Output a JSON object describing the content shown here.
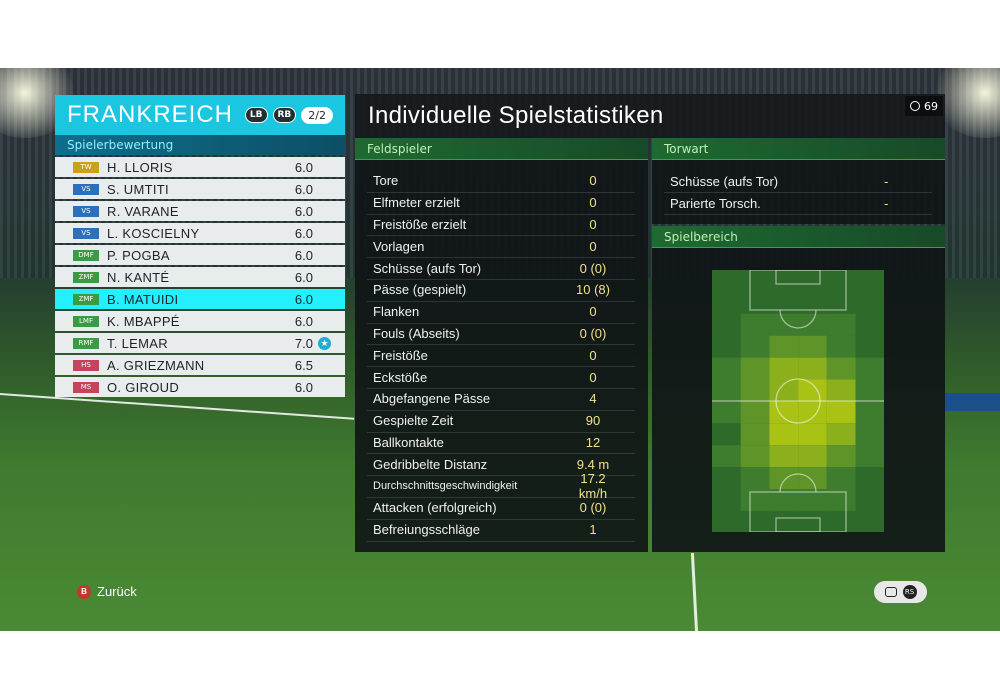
{
  "team": {
    "name": "FRANKREICH",
    "badges": [
      "LB",
      "RB"
    ],
    "page": "2/2",
    "rating_title": "Spielerbewertung",
    "players": [
      {
        "pos": "TW",
        "pos_color": "#c9a21a",
        "name": "H. LLORIS",
        "rating": "6.0"
      },
      {
        "pos": "VS",
        "pos_color": "#2e6fb8",
        "name": "S. UMTITI",
        "rating": "6.0"
      },
      {
        "pos": "VS",
        "pos_color": "#2e6fb8",
        "name": "R. VARANE",
        "rating": "6.0"
      },
      {
        "pos": "VS",
        "pos_color": "#2e6fb8",
        "name": "L. KOSCIELNY",
        "rating": "6.0"
      },
      {
        "pos": "DMF",
        "pos_color": "#3b9b45",
        "name": "P. POGBA",
        "rating": "6.0"
      },
      {
        "pos": "ZMF",
        "pos_color": "#3b9b45",
        "name": "N. KANTÉ",
        "rating": "6.0"
      },
      {
        "pos": "ZMF",
        "pos_color": "#3b9b45",
        "name": "B. MATUIDI",
        "rating": "6.0",
        "selected": true
      },
      {
        "pos": "LMF",
        "pos_color": "#3b9b45",
        "name": "K. MBAPPÉ",
        "rating": "6.0"
      },
      {
        "pos": "RMF",
        "pos_color": "#3b9b45",
        "name": "T. LEMAR",
        "rating": "7.0",
        "star": true
      },
      {
        "pos": "HS",
        "pos_color": "#c5435d",
        "name": "A. GRIEZMANN",
        "rating": "6.5"
      },
      {
        "pos": "MS",
        "pos_color": "#c5435d",
        "name": "O. GIROUD",
        "rating": "6.0"
      }
    ]
  },
  "stats": {
    "title": "Individuelle Spielstatistiken",
    "clock": "69",
    "field_header": "Feldspieler",
    "gk_header": "Torwart",
    "area_header": "Spielbereich",
    "field_rows": [
      {
        "label": "Tore",
        "value": "0"
      },
      {
        "label": "Elfmeter erzielt",
        "value": "0"
      },
      {
        "label": "Freistöße erzielt",
        "value": "0"
      },
      {
        "label": "Vorlagen",
        "value": "0"
      },
      {
        "label": "Schüsse (aufs Tor)",
        "value": "0 (0)"
      },
      {
        "label": "Pässe (gespielt)",
        "value": "10 (8)"
      },
      {
        "label": "Flanken",
        "value": "0"
      },
      {
        "label": "Fouls (Abseits)",
        "value": "0 (0)"
      },
      {
        "label": "Freistöße",
        "value": "0"
      },
      {
        "label": "Eckstöße",
        "value": "0"
      },
      {
        "label": "Abgefangene Pässe",
        "value": "4"
      },
      {
        "label": "Gespielte Zeit",
        "value": "90"
      },
      {
        "label": "Ballkontakte",
        "value": "12"
      },
      {
        "label": "Gedribbelte Distanz",
        "value": "9.4 m"
      },
      {
        "label": "Durchschnittsgeschwindigkeit",
        "value": "17.2 km/h"
      },
      {
        "label": "Attacken (erfolgreich)",
        "value": "0 (0)"
      },
      {
        "label": "Befreiungsschläge",
        "value": "1"
      }
    ],
    "gk_rows": [
      {
        "label": "Schüsse (aufs Tor)",
        "value": "-"
      },
      {
        "label": "Parierte Torsch.",
        "value": "-"
      }
    ]
  },
  "footer": {
    "back_label": "Zurück",
    "back_button": "B",
    "rs_label": "RS"
  },
  "colors": {
    "accent": "#1ac6e0",
    "selected_row": "#22f0ff",
    "value_text": "#f2e08a"
  }
}
